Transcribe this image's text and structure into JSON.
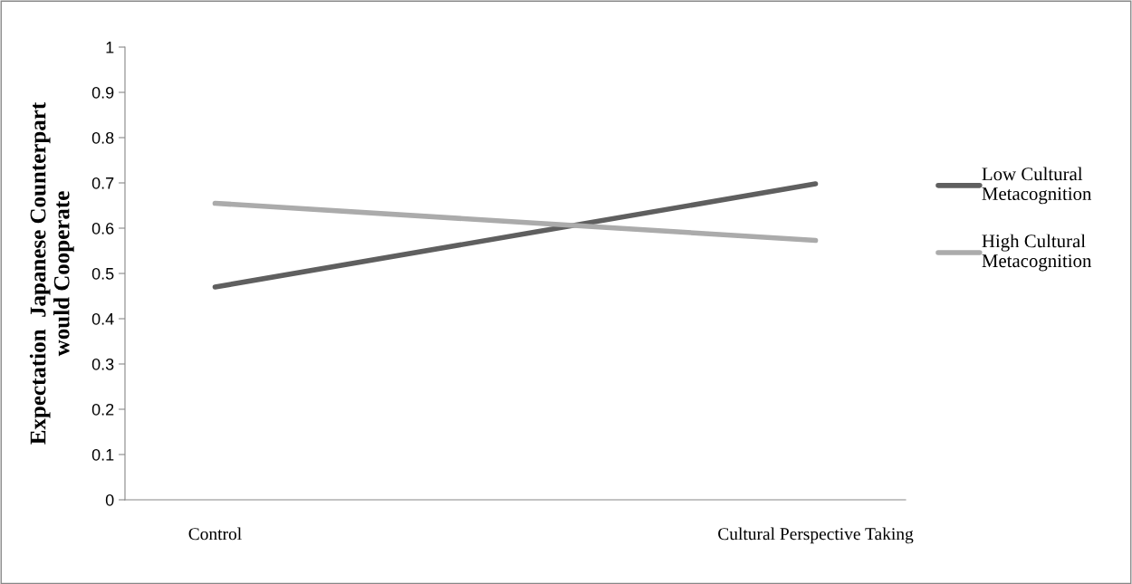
{
  "chart_data": {
    "type": "line",
    "ylabel": "Expectation  Japanese Counterpart\nwould Cooperate",
    "categories": [
      "Control",
      "Cultural Perspective Taking"
    ],
    "series": [
      {
        "name": "Low Cultural\nMetacognition",
        "color": "#5f5f5f",
        "values": [
          0.47,
          0.698
        ]
      },
      {
        "name": "High Cultural\nMetacognition",
        "color": "#ababab",
        "values": [
          0.655,
          0.573
        ]
      }
    ],
    "ylim": [
      0,
      1
    ],
    "yticks": [
      0,
      0.1,
      0.2,
      0.3,
      0.4,
      0.5,
      0.6,
      0.7,
      0.8,
      0.9,
      1
    ],
    "grid": false,
    "legend": "right",
    "marker": "none",
    "line_style": "solid"
  }
}
